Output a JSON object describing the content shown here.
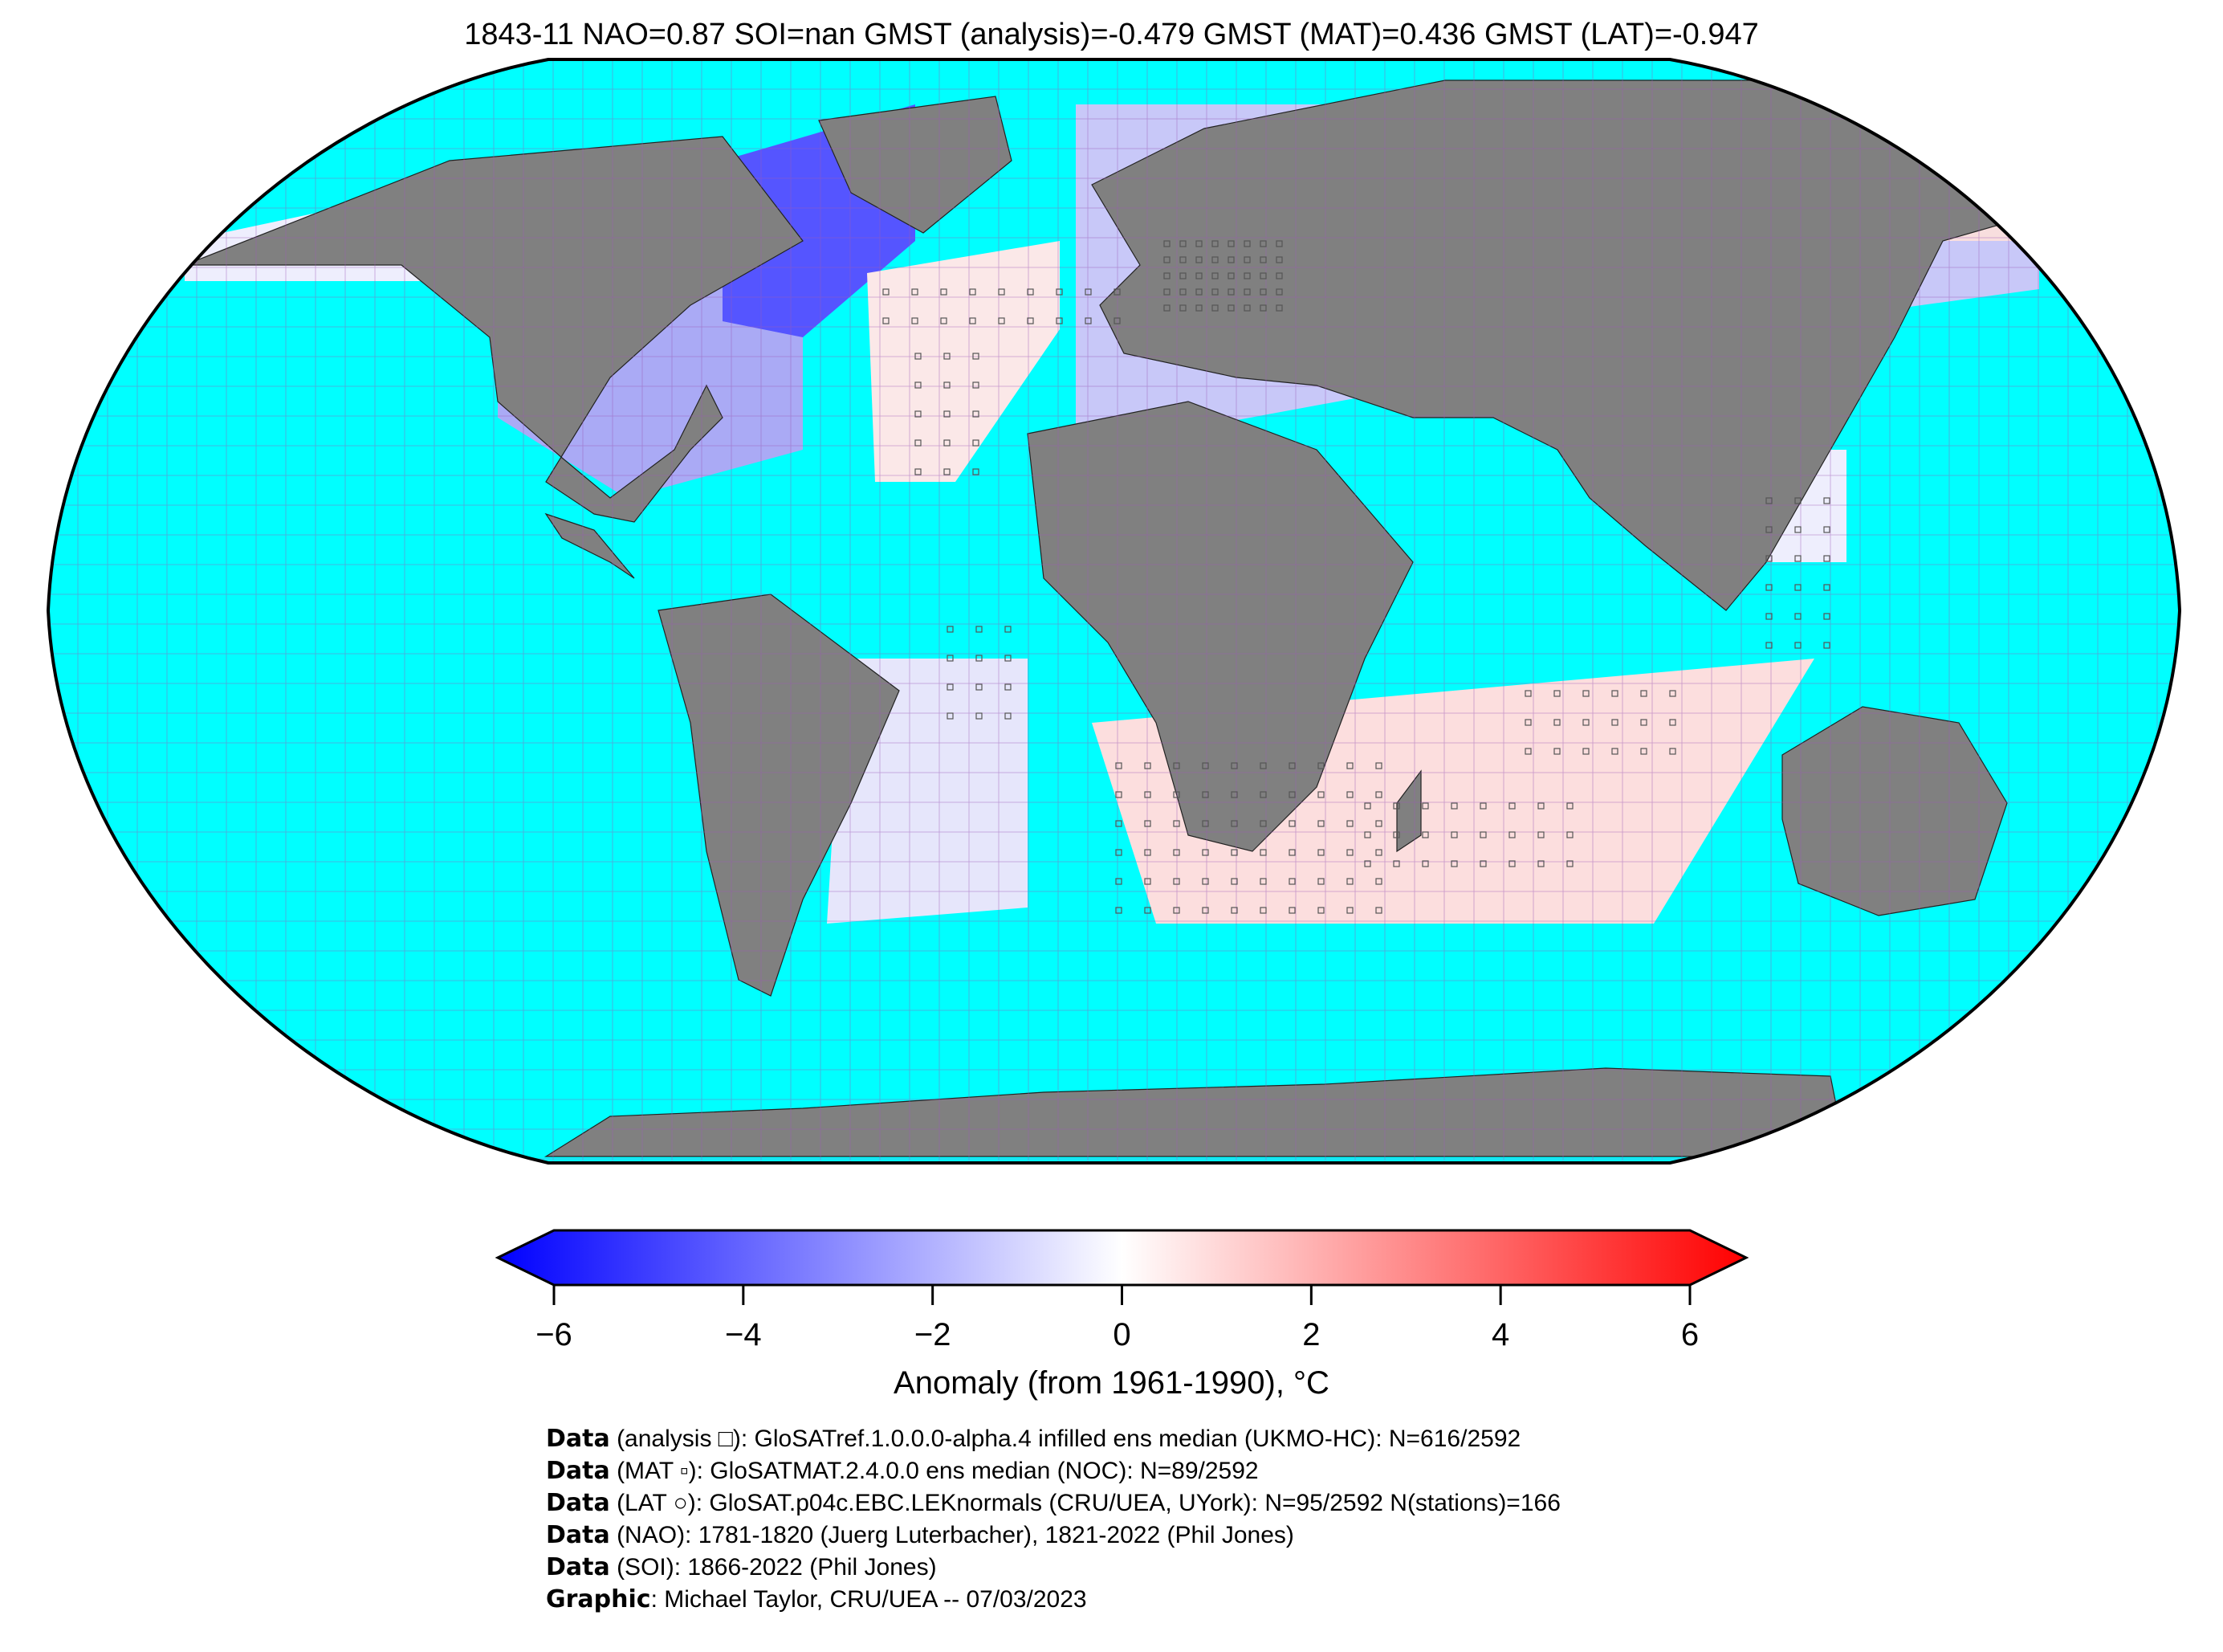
{
  "title": "1843-11 NAO=0.87 SOI=nan GMST (analysis)=-0.479 GMST (MAT)=0.436 GMST (LAT)=-0.947",
  "colorbar": {
    "label": "Anomaly (from 1961-1990), °C",
    "ticks": [
      "−6",
      "−4",
      "−2",
      "0",
      "2",
      "4",
      "6"
    ],
    "range": [
      -6,
      6
    ],
    "colors": {
      "low": "#0000ff",
      "mid": "#ffffff",
      "high": "#ff0000"
    }
  },
  "map": {
    "ocean_color": "#00ffff",
    "land_color": "#808080",
    "grid_color": "#9b59b6"
  },
  "credits": [
    {
      "key": "Data",
      "text": " (analysis □): GloSATref.1.0.0.0-alpha.4 infilled ens median (UKMO-HC): N=616/2592"
    },
    {
      "key": "Data",
      "text": " (MAT ▫): GloSATMAT.2.4.0.0 ens median (NOC): N=89/2592"
    },
    {
      "key": "Data",
      "text": " (LAT ○): GloSAT.p04c.EBC.LEKnormals (CRU/UEA, UYork): N=95/2592 N(stations)=166"
    },
    {
      "key": "Data",
      "text": " (NAO): 1781-1820 (Juerg Luterbacher), 1821-2022 (Phil Jones)"
    },
    {
      "key": "Data",
      "text": " (SOI): 1866-2022 (Phil Jones)"
    },
    {
      "key": "Graphic",
      "text": ": Michael Taylor, CRU/UEA -- 07/03/2023"
    }
  ]
}
